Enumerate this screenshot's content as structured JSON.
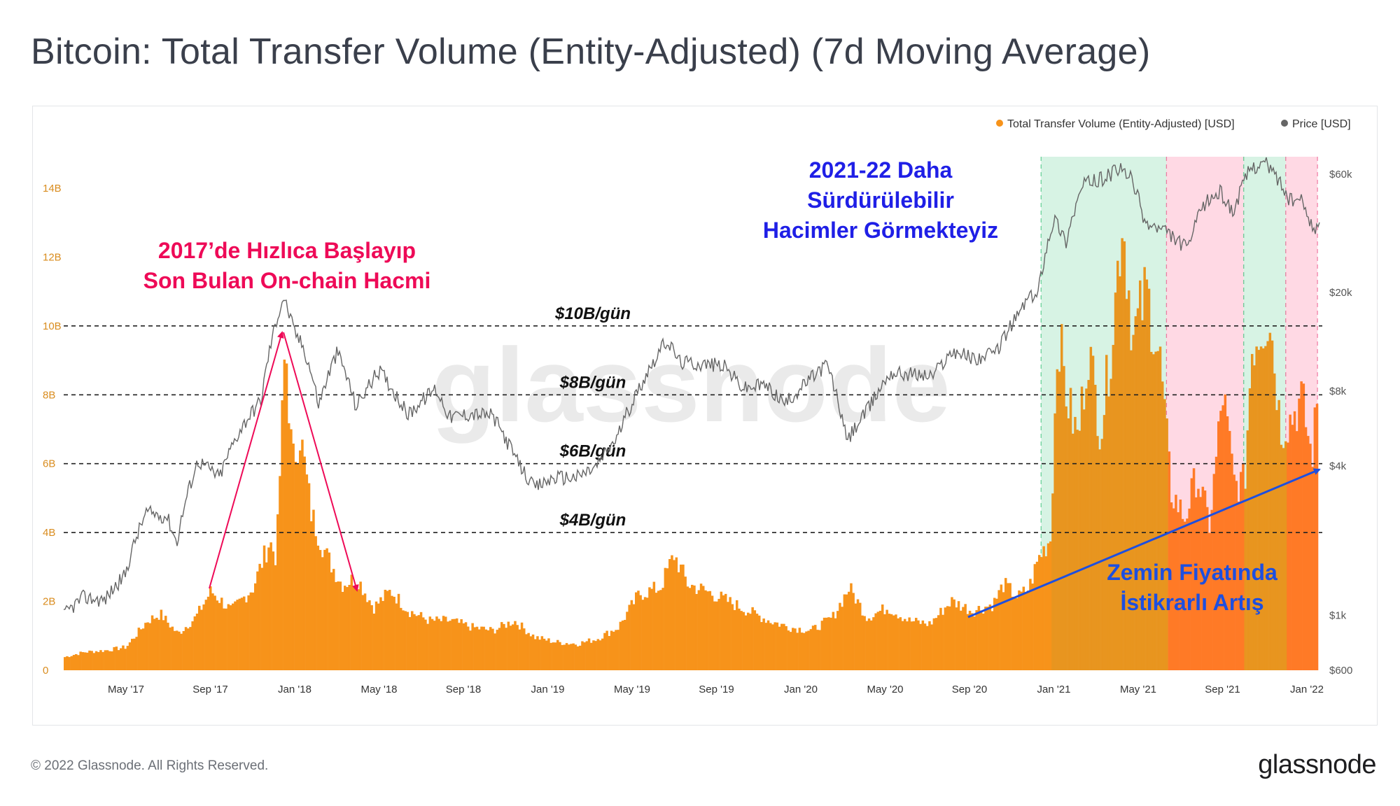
{
  "title": "Bitcoin: Total Transfer Volume (Entity-Adjusted) (7d Moving Average)",
  "footer": "© 2022 Glassnode. All Rights Reserved.",
  "brand": "glassnode",
  "watermark": "glassnode",
  "colors": {
    "volume": "#f7931a",
    "volume_highlight": "#ff7a26",
    "price": "#666666",
    "green_band": "#d7f3e4",
    "pink_band": "#ffd9e4",
    "annotation_red": "#ee0a57",
    "annotation_blue": "#1f1fe6",
    "annotation_lightblue": "#1d4fe0",
    "left_axis": "#d98c1e",
    "right_axis": "#555555"
  },
  "chart_data": {
    "type": "area",
    "legend": [
      "Total Transfer Volume (Entity-Adjusted) [USD]",
      "Price [USD]"
    ],
    "legend_position": "top-right",
    "x_ticks": [
      "May '17",
      "Sep '17",
      "Jan '18",
      "May '18",
      "Sep '18",
      "Jan '19",
      "May '19",
      "Sep '19",
      "Jan '20",
      "May '20",
      "Sep '20",
      "Jan '21",
      "May '21",
      "Sep '21",
      "Jan '22"
    ],
    "y_left_ticks": [
      "0",
      "2B",
      "4B",
      "6B",
      "8B",
      "10B",
      "12B",
      "14B"
    ],
    "y_left_range": [
      0,
      14000000000
    ],
    "y_right_ticks": [
      "$600",
      "$1k",
      "$4k",
      "$8k",
      "$20k",
      "$60k"
    ],
    "y_right_scale": "log",
    "x_range": [
      "2017-02-01",
      "2022-02-01"
    ],
    "series": [
      {
        "name": "Total Transfer Volume (Entity-Adjusted) [USD]",
        "unit": "B USD",
        "points": [
          [
            "2017-02-01",
            0.4
          ],
          [
            "2017-03-01",
            0.55
          ],
          [
            "2017-04-01",
            0.6
          ],
          [
            "2017-05-01",
            0.7
          ],
          [
            "2017-06-01",
            1.5
          ],
          [
            "2017-06-20",
            1.7
          ],
          [
            "2017-07-15",
            1.1
          ],
          [
            "2017-08-10",
            1.6
          ],
          [
            "2017-09-01",
            2.4
          ],
          [
            "2017-10-01",
            1.8
          ],
          [
            "2017-11-01",
            2.5
          ],
          [
            "2017-11-25",
            3.9
          ],
          [
            "2017-12-05",
            3.4
          ],
          [
            "2017-12-18",
            10.0
          ],
          [
            "2017-12-28",
            6.2
          ],
          [
            "2018-01-08",
            7.2
          ],
          [
            "2018-01-25",
            4.7
          ],
          [
            "2018-02-15",
            3.5
          ],
          [
            "2018-03-10",
            2.6
          ],
          [
            "2018-04-01",
            2.8
          ],
          [
            "2018-04-25",
            1.9
          ],
          [
            "2018-05-20",
            2.4
          ],
          [
            "2018-06-15",
            1.8
          ],
          [
            "2018-07-15",
            1.5
          ],
          [
            "2018-08-15",
            1.5
          ],
          [
            "2018-09-15",
            1.3
          ],
          [
            "2018-10-15",
            1.2
          ],
          [
            "2018-11-15",
            1.5
          ],
          [
            "2018-12-15",
            1.0
          ],
          [
            "2019-01-15",
            0.85
          ],
          [
            "2019-02-15",
            0.8
          ],
          [
            "2019-03-15",
            0.95
          ],
          [
            "2019-04-15",
            1.3
          ],
          [
            "2019-05-15",
            2.3
          ],
          [
            "2019-06-15",
            2.5
          ],
          [
            "2019-07-05",
            3.5
          ],
          [
            "2019-07-25",
            2.6
          ],
          [
            "2019-08-20",
            2.4
          ],
          [
            "2019-09-20",
            2.1
          ],
          [
            "2019-10-20",
            1.8
          ],
          [
            "2019-11-20",
            1.5
          ],
          [
            "2019-12-20",
            1.3
          ],
          [
            "2020-01-20",
            1.2
          ],
          [
            "2020-02-20",
            1.6
          ],
          [
            "2020-03-15",
            2.5
          ],
          [
            "2020-04-10",
            1.6
          ],
          [
            "2020-05-10",
            1.9
          ],
          [
            "2020-06-10",
            1.5
          ],
          [
            "2020-07-10",
            1.4
          ],
          [
            "2020-08-10",
            2.1
          ],
          [
            "2020-09-10",
            1.8
          ],
          [
            "2020-10-10",
            2.0
          ],
          [
            "2020-10-25",
            2.6
          ],
          [
            "2020-11-15",
            2.2
          ],
          [
            "2020-12-01",
            2.5
          ],
          [
            "2020-12-15",
            3.4
          ],
          [
            "2021-01-01",
            4.0
          ],
          [
            "2021-01-12",
            10.4
          ],
          [
            "2021-01-25",
            8.2
          ],
          [
            "2021-02-10",
            7.0
          ],
          [
            "2021-02-25",
            9.8
          ],
          [
            "2021-03-15",
            7.2
          ],
          [
            "2021-04-01",
            10.2
          ],
          [
            "2021-04-15",
            13.8
          ],
          [
            "2021-05-01",
            10.0
          ],
          [
            "2021-05-20",
            11.5
          ],
          [
            "2021-06-10",
            9.2
          ],
          [
            "2021-06-25",
            5.4
          ],
          [
            "2021-07-15",
            4.6
          ],
          [
            "2021-08-01",
            5.9
          ],
          [
            "2021-08-20",
            4.4
          ],
          [
            "2021-09-08",
            8.4
          ],
          [
            "2021-09-25",
            5.6
          ],
          [
            "2021-10-10",
            5.7
          ],
          [
            "2021-10-20",
            9.8
          ],
          [
            "2021-11-01",
            10.3
          ],
          [
            "2021-11-15",
            10.8
          ],
          [
            "2021-12-01",
            7.3
          ],
          [
            "2021-12-15",
            7.6
          ],
          [
            "2022-01-01",
            8.2
          ],
          [
            "2022-01-15",
            6.4
          ],
          [
            "2022-01-25",
            8.5
          ]
        ]
      },
      {
        "name": "Price [USD]",
        "unit": "USD",
        "scale": "log",
        "points": [
          [
            "2017-02-01",
            1000
          ],
          [
            "2017-03-01",
            1180
          ],
          [
            "2017-04-01",
            1150
          ],
          [
            "2017-05-01",
            1450
          ],
          [
            "2017-06-01",
            2600
          ],
          [
            "2017-07-01",
            2500
          ],
          [
            "2017-07-15",
            1950
          ],
          [
            "2017-08-15",
            4200
          ],
          [
            "2017-09-15",
            3600
          ],
          [
            "2017-10-15",
            5600
          ],
          [
            "2017-11-15",
            7400
          ],
          [
            "2017-12-17",
            19200
          ],
          [
            "2018-01-01",
            14000
          ],
          [
            "2018-01-15",
            12000
          ],
          [
            "2018-02-06",
            7000
          ],
          [
            "2018-03-05",
            11500
          ],
          [
            "2018-04-01",
            6900
          ],
          [
            "2018-05-05",
            9700
          ],
          [
            "2018-06-15",
            6400
          ],
          [
            "2018-07-25",
            8200
          ],
          [
            "2018-08-15",
            6300
          ],
          [
            "2018-09-15",
            6500
          ],
          [
            "2018-10-15",
            6400
          ],
          [
            "2018-11-20",
            4200
          ],
          [
            "2018-12-15",
            3250
          ],
          [
            "2019-01-15",
            3600
          ],
          [
            "2019-02-15",
            3600
          ],
          [
            "2019-03-15",
            3950
          ],
          [
            "2019-04-15",
            5200
          ],
          [
            "2019-05-15",
            8000
          ],
          [
            "2019-06-26",
            12800
          ],
          [
            "2019-07-15",
            10500
          ],
          [
            "2019-08-15",
            10300
          ],
          [
            "2019-09-15",
            10200
          ],
          [
            "2019-10-15",
            8200
          ],
          [
            "2019-11-15",
            8500
          ],
          [
            "2019-12-15",
            7100
          ],
          [
            "2020-01-15",
            8700
          ],
          [
            "2020-02-13",
            10300
          ],
          [
            "2020-03-13",
            5000
          ],
          [
            "2020-04-15",
            6900
          ],
          [
            "2020-05-15",
            9500
          ],
          [
            "2020-06-15",
            9400
          ],
          [
            "2020-07-15",
            9200
          ],
          [
            "2020-08-15",
            11700
          ],
          [
            "2020-09-15",
            10800
          ],
          [
            "2020-10-15",
            11400
          ],
          [
            "2020-11-15",
            16000
          ],
          [
            "2020-12-01",
            19000
          ],
          [
            "2020-12-15",
            19500
          ],
          [
            "2021-01-08",
            40000
          ],
          [
            "2021-01-25",
            32000
          ],
          [
            "2021-02-20",
            55000
          ],
          [
            "2021-03-15",
            57000
          ],
          [
            "2021-04-14",
            63000
          ],
          [
            "2021-05-01",
            57000
          ],
          [
            "2021-05-20",
            38000
          ],
          [
            "2021-06-20",
            35000
          ],
          [
            "2021-07-20",
            30000
          ],
          [
            "2021-08-15",
            46000
          ],
          [
            "2021-09-06",
            51000
          ],
          [
            "2021-09-25",
            42000
          ],
          [
            "2021-10-20",
            64000
          ],
          [
            "2021-11-10",
            67000
          ],
          [
            "2021-11-30",
            57000
          ],
          [
            "2021-12-15",
            47000
          ],
          [
            "2022-01-01",
            47000
          ],
          [
            "2022-01-22",
            35000
          ],
          [
            "2022-01-28",
            37000
          ]
        ]
      }
    ],
    "hlines": [
      {
        "label": "$10B/gün",
        "value": 10
      },
      {
        "label": "$8B/gün",
        "value": 8
      },
      {
        "label": "$6B/gün",
        "value": 6
      },
      {
        "label": "$4B/gün",
        "value": 4
      }
    ],
    "bands": [
      {
        "type": "green",
        "from": "2020-12-20",
        "to": "2021-06-20"
      },
      {
        "type": "pink",
        "from": "2021-06-20",
        "to": "2021-10-10"
      },
      {
        "type": "green",
        "from": "2021-10-10",
        "to": "2021-12-10"
      },
      {
        "type": "pink",
        "from": "2021-12-10",
        "to": "2022-01-25"
      }
    ],
    "annotations": {
      "red": [
        "2017’de Hızlıca Başlayıp",
        "Son Bulan On-chain Hacmi"
      ],
      "blue": [
        "2021-22 Daha",
        "Sürdürülebilir",
        "Hacimler Görmekteyiz"
      ],
      "lightblue": [
        "Zemin Fiyatında",
        "İstikrarlı Artış"
      ]
    }
  }
}
